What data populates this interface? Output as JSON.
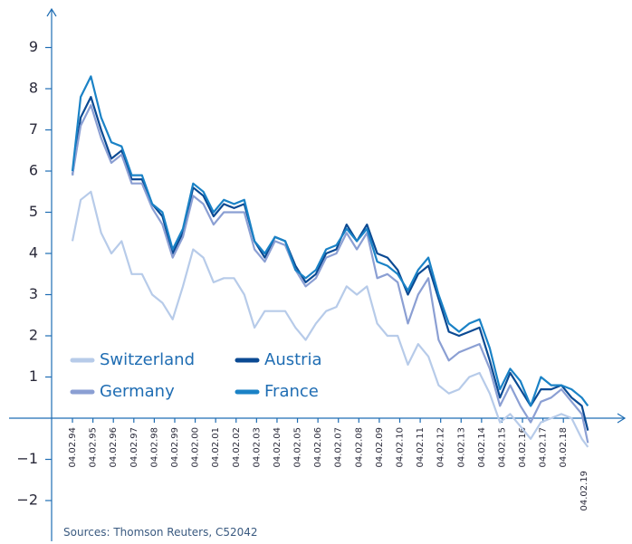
{
  "chart_data": {
    "type": "line",
    "source": "Sources: Thomson Reuters, C52042",
    "x": [
      1994.1,
      1994.5,
      1995,
      1995.5,
      1996,
      1996.5,
      1997,
      1997.5,
      1998,
      1998.5,
      1999,
      1999.5,
      2000,
      2000.5,
      2001,
      2001.5,
      2002,
      2002.5,
      2003,
      2003.5,
      2004,
      2004.5,
      2005,
      2005.5,
      2006,
      2006.5,
      2007,
      2007.5,
      2008,
      2008.5,
      2009,
      2009.5,
      2010,
      2010.5,
      2011,
      2011.5,
      2012,
      2012.5,
      2013,
      2013.5,
      2014,
      2014.5,
      2015,
      2015.5,
      2016,
      2016.5,
      2017,
      2017.5,
      2018,
      2018.5,
      2019,
      2019.3
    ],
    "series": [
      {
        "name": "Switzerland",
        "color": "#b7cbe9",
        "values": [
          4.3,
          5.3,
          5.5,
          4.5,
          4.0,
          4.3,
          3.5,
          3.5,
          3.0,
          2.8,
          2.4,
          3.2,
          4.1,
          3.9,
          3.3,
          3.4,
          3.4,
          3.0,
          2.2,
          2.6,
          2.6,
          2.6,
          2.2,
          1.9,
          2.3,
          2.6,
          2.7,
          3.2,
          3.0,
          3.2,
          2.3,
          2.0,
          2.0,
          1.3,
          1.8,
          1.5,
          0.8,
          0.6,
          0.7,
          1.0,
          1.1,
          0.6,
          -0.1,
          0.1,
          -0.2,
          -0.5,
          -0.1,
          0.0,
          0.1,
          0.0,
          -0.5,
          -0.7
        ]
      },
      {
        "name": "Austria",
        "color": "#0b4a93",
        "values": [
          5.9,
          7.3,
          7.8,
          7.0,
          6.3,
          6.5,
          5.8,
          5.8,
          5.2,
          4.9,
          4.0,
          4.5,
          5.6,
          5.4,
          4.9,
          5.2,
          5.1,
          5.2,
          4.3,
          3.9,
          4.4,
          4.3,
          3.7,
          3.3,
          3.5,
          4.0,
          4.1,
          4.7,
          4.3,
          4.7,
          4.0,
          3.9,
          3.6,
          3.0,
          3.5,
          3.7,
          2.9,
          2.1,
          2.0,
          2.1,
          2.2,
          1.4,
          0.5,
          1.1,
          0.7,
          0.3,
          0.7,
          0.7,
          0.8,
          0.5,
          0.3,
          -0.3
        ]
      },
      {
        "name": "Germany",
        "color": "#8b9fd3",
        "values": [
          5.9,
          7.1,
          7.6,
          6.8,
          6.2,
          6.4,
          5.7,
          5.7,
          5.1,
          4.7,
          3.9,
          4.4,
          5.4,
          5.2,
          4.7,
          5.0,
          5.0,
          5.0,
          4.1,
          3.8,
          4.3,
          4.2,
          3.6,
          3.2,
          3.4,
          3.9,
          4.0,
          4.5,
          4.1,
          4.5,
          3.4,
          3.5,
          3.3,
          2.3,
          3.0,
          3.4,
          1.9,
          1.4,
          1.6,
          1.7,
          1.8,
          1.2,
          0.3,
          0.8,
          0.3,
          -0.1,
          0.4,
          0.5,
          0.7,
          0.4,
          0.1,
          -0.6
        ]
      },
      {
        "name": "France",
        "color": "#1a82c6",
        "values": [
          6.0,
          7.8,
          8.3,
          7.3,
          6.7,
          6.6,
          5.9,
          5.9,
          5.2,
          5.0,
          4.1,
          4.6,
          5.7,
          5.5,
          5.0,
          5.3,
          5.2,
          5.3,
          4.3,
          4.0,
          4.4,
          4.3,
          3.6,
          3.4,
          3.6,
          4.1,
          4.2,
          4.6,
          4.3,
          4.6,
          3.8,
          3.7,
          3.5,
          3.1,
          3.6,
          3.9,
          3.0,
          2.3,
          2.1,
          2.3,
          2.4,
          1.7,
          0.7,
          1.2,
          0.9,
          0.3,
          1.0,
          0.8,
          0.8,
          0.7,
          0.5,
          0.3
        ]
      }
    ],
    "xlim": [
      1991,
      2021.1
    ],
    "ylim": [
      -3,
      10
    ],
    "yticks": [
      {
        "value": -2,
        "label": "−2"
      },
      {
        "value": -1,
        "label": "−1"
      },
      1,
      2,
      3,
      4,
      5,
      6,
      7,
      8,
      9
    ],
    "xticks": [
      {
        "value": 1994.1,
        "label": "04.02.94"
      },
      {
        "value": 1995.1,
        "label": "04.02.95"
      },
      {
        "value": 1996.1,
        "label": "04.02.96"
      },
      {
        "value": 1997.1,
        "label": "04.02.97"
      },
      {
        "value": 1998.1,
        "label": "04.02.98"
      },
      {
        "value": 1999.1,
        "label": "04.02.99"
      },
      {
        "value": 2000.1,
        "label": "04.02.00"
      },
      {
        "value": 2001.1,
        "label": "04.02.01"
      },
      {
        "value": 2002.1,
        "label": "04.02.02"
      },
      {
        "value": 2003.1,
        "label": "04.02.03"
      },
      {
        "value": 2004.1,
        "label": "04.02.04"
      },
      {
        "value": 2005.1,
        "label": "04.02.05"
      },
      {
        "value": 2006.1,
        "label": "04.02.06"
      },
      {
        "value": 2007.1,
        "label": "04.02.07"
      },
      {
        "value": 2008.1,
        "label": "04.02.08"
      },
      {
        "value": 2009.1,
        "label": "04.02.09"
      },
      {
        "value": 2010.1,
        "label": "04.02.10"
      },
      {
        "value": 2011.1,
        "label": "04.02.11"
      },
      {
        "value": 2012.1,
        "label": "04.02.12"
      },
      {
        "value": 2013.1,
        "label": "04.02.13"
      },
      {
        "value": 2014.1,
        "label": "04.02.14"
      },
      {
        "value": 2015.1,
        "label": "04.02.15"
      },
      {
        "value": 2016.1,
        "label": "04.02.16"
      },
      {
        "value": 2017.1,
        "label": "04.02.17"
      },
      {
        "value": 2018.1,
        "label": "04.02.18"
      },
      {
        "value": 2019.1,
        "label": "04.02.19"
      }
    ],
    "grid": false,
    "legend": "lower left"
  }
}
